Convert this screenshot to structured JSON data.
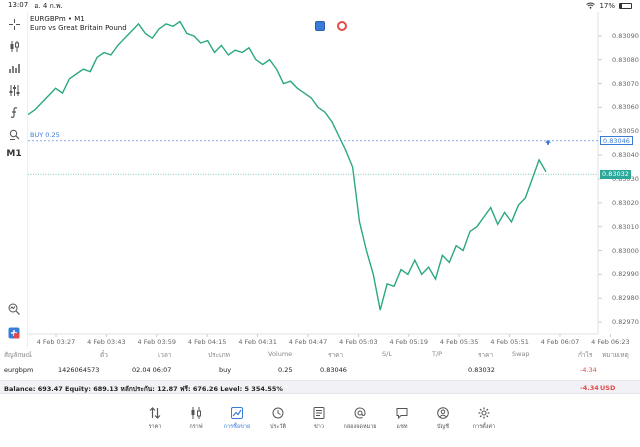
{
  "status": {
    "time": "13:07",
    "date": "อ. 4 ก.พ.",
    "battery": "17%"
  },
  "instrument": {
    "symbol_line": "EURGBPm • M1",
    "description": "Euro vs Great Britain Pound"
  },
  "timeframe_label": "M1",
  "chart_data": {
    "type": "line",
    "color": "#2ca87e",
    "y_ticks": [
      "0.83090",
      "0.83080",
      "0.83070",
      "0.83060",
      "0.83050",
      "0.83040",
      "0.83030",
      "0.83020",
      "0.83010",
      "0.83000",
      "0.82990",
      "0.82980",
      "0.82970"
    ],
    "ylim": [
      0.82965,
      0.831
    ],
    "x_ticks": [
      "4 Feb 03:27",
      "4 Feb 03:43",
      "4 Feb 03:59",
      "4 Feb 04:15",
      "4 Feb 04:31",
      "4 Feb 04:47",
      "4 Feb 05:03",
      "4 Feb 05:19",
      "4 Feb 05:35",
      "4 Feb 05:51",
      "4 Feb 06:07",
      "4 Feb 06:23"
    ],
    "x_start": "4 Feb 03:27",
    "minutes_per_tick": 16,
    "buy_line": {
      "label": "BUY 0.25",
      "price": 0.83046,
      "price_label": "0.83046",
      "color": "#3b7bd8"
    },
    "bid_line": {
      "price": 0.83032,
      "price_label": "0.83032",
      "color": "#2ca89a"
    },
    "x": [
      "4 Feb 03:27",
      "4 Feb 03:29",
      "4 Feb 03:31",
      "4 Feb 03:33",
      "4 Feb 03:35",
      "4 Feb 03:37",
      "4 Feb 03:39",
      "4 Feb 03:41",
      "4 Feb 03:43",
      "4 Feb 03:45",
      "4 Feb 03:47",
      "4 Feb 03:49",
      "4 Feb 03:51",
      "4 Feb 03:53",
      "4 Feb 03:55",
      "4 Feb 03:57",
      "4 Feb 03:59",
      "4 Feb 04:01",
      "4 Feb 04:03",
      "4 Feb 04:05",
      "4 Feb 04:07",
      "4 Feb 04:09",
      "4 Feb 04:11",
      "4 Feb 04:13",
      "4 Feb 04:15",
      "4 Feb 04:17",
      "4 Feb 04:19",
      "4 Feb 04:21",
      "4 Feb 04:23",
      "4 Feb 04:25",
      "4 Feb 04:27",
      "4 Feb 04:29",
      "4 Feb 04:31",
      "4 Feb 04:33",
      "4 Feb 04:35",
      "4 Feb 04:37",
      "4 Feb 04:39",
      "4 Feb 04:41",
      "4 Feb 04:43",
      "4 Feb 04:45",
      "4 Feb 04:47",
      "4 Feb 04:49",
      "4 Feb 04:51",
      "4 Feb 04:53",
      "4 Feb 04:55",
      "4 Feb 04:57",
      "4 Feb 04:59",
      "4 Feb 05:01",
      "4 Feb 05:03",
      "4 Feb 05:05",
      "4 Feb 05:07",
      "4 Feb 05:09",
      "4 Feb 05:11",
      "4 Feb 05:13",
      "4 Feb 05:15",
      "4 Feb 05:17",
      "4 Feb 05:19",
      "4 Feb 05:21",
      "4 Feb 05:23",
      "4 Feb 05:25",
      "4 Feb 05:27",
      "4 Feb 05:29",
      "4 Feb 05:31",
      "4 Feb 05:33",
      "4 Feb 05:35",
      "4 Feb 05:37",
      "4 Feb 05:39",
      "4 Feb 05:41",
      "4 Feb 05:43",
      "4 Feb 05:45",
      "4 Feb 05:47",
      "4 Feb 05:49",
      "4 Feb 05:51",
      "4 Feb 05:53",
      "4 Feb 05:55",
      "4 Feb 05:57"
    ],
    "y": [
      0.83057,
      0.83059,
      0.83062,
      0.83065,
      0.83068,
      0.83066,
      0.83072,
      0.83074,
      0.83076,
      0.83075,
      0.83081,
      0.83083,
      0.83082,
      0.83086,
      0.83089,
      0.83092,
      0.83095,
      0.83091,
      0.83089,
      0.83093,
      0.83095,
      0.83094,
      0.83096,
      0.83091,
      0.8309,
      0.83087,
      0.83088,
      0.83083,
      0.83086,
      0.83082,
      0.83084,
      0.83083,
      0.83085,
      0.8308,
      0.83078,
      0.8308,
      0.83076,
      0.8307,
      0.83071,
      0.83068,
      0.83066,
      0.83064,
      0.8306,
      0.83058,
      0.83054,
      0.83048,
      0.83042,
      0.83035,
      0.83012,
      0.83,
      0.8299,
      0.82975,
      0.82986,
      0.82985,
      0.82992,
      0.8299,
      0.82996,
      0.8299,
      0.82993,
      0.82988,
      0.82998,
      0.82995,
      0.83002,
      0.83,
      0.83008,
      0.8301,
      0.83014,
      0.83018,
      0.83011,
      0.83016,
      0.83012,
      0.83019,
      0.83022,
      0.8303,
      0.83038,
      0.83033
    ]
  },
  "positions": {
    "headers": [
      "สัญลักษณ์",
      "ตั๋ว",
      "เวลา",
      "ประเภท",
      "Volume",
      "ราคา",
      "S/L",
      "T/P",
      "ราคา",
      "Swap",
      "กำไร",
      "หมายเหตุ"
    ],
    "rows": [
      {
        "symbol": "eurgbpm",
        "ticket": "1426064573",
        "time": "02.04 06:07",
        "type": "buy",
        "volume": "0.25",
        "open_price": "0.83046",
        "sl": "",
        "tp": "",
        "price": "0.83032",
        "swap": "",
        "profit": "-4.34"
      }
    ]
  },
  "balance": {
    "text": "Balance: 693.47 Equity: 689.13 หลักประกัน: 12.87 ฟรี: 676.26 Level: 5 354.55%",
    "profit": "-4.34",
    "currency": "USD"
  },
  "tabs": [
    {
      "label": "ราคา",
      "icon": "quotes-arrows-icon"
    },
    {
      "label": "กราฟ",
      "icon": "candles-icon"
    },
    {
      "label": "การซื้อขาย",
      "icon": "trade-chart-icon",
      "active": true
    },
    {
      "label": "ประวัติ",
      "icon": "history-clock-icon"
    },
    {
      "label": "ข่าว",
      "icon": "news-icon"
    },
    {
      "label": "กล่องจดหมาย",
      "icon": "mailbox-at-icon"
    },
    {
      "label": "แชท",
      "icon": "chat-icon"
    },
    {
      "label": "บัญชี",
      "icon": "account-icon"
    },
    {
      "label": "การตั้งค่า",
      "icon": "settings-gear-icon"
    }
  ],
  "colors": {
    "accent": "#3b7bd8",
    "line": "#2ca87e",
    "loss": "#e34a4a"
  }
}
